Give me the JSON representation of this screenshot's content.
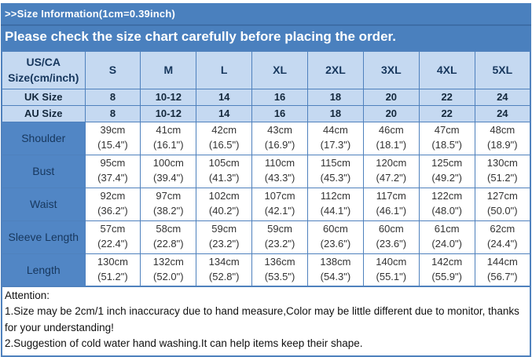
{
  "banner": {
    "title": ">>Size Information(1cm=0.39inch)",
    "subtitle": "Please check the size chart carefully before placing the order."
  },
  "table": {
    "corner_line1": "US/CA",
    "corner_line2": "Size(cm/inch)",
    "sizes": [
      "S",
      "M",
      "L",
      "XL",
      "2XL",
      "3XL",
      "4XL",
      "5XL"
    ],
    "size_rows": [
      {
        "label": "UK Size",
        "values": [
          "8",
          "10-12",
          "14",
          "16",
          "18",
          "20",
          "22",
          "24"
        ]
      },
      {
        "label": "AU Size",
        "values": [
          "8",
          "10-12",
          "14",
          "16",
          "18",
          "20",
          "22",
          "24"
        ]
      }
    ],
    "measurement_rows": [
      {
        "label": "Shoulder",
        "values": [
          {
            "cm": "39cm",
            "inch": "(15.4\")"
          },
          {
            "cm": "41cm",
            "inch": "(16.1\")"
          },
          {
            "cm": "42cm",
            "inch": "(16.5\")"
          },
          {
            "cm": "43cm",
            "inch": "(16.9\")"
          },
          {
            "cm": "44cm",
            "inch": "(17.3\")"
          },
          {
            "cm": "46cm",
            "inch": "(18.1\")"
          },
          {
            "cm": "47cm",
            "inch": "(18.5\")"
          },
          {
            "cm": "48cm",
            "inch": "(18.9\")"
          }
        ]
      },
      {
        "label": "Bust",
        "values": [
          {
            "cm": "95cm",
            "inch": "(37.4\")"
          },
          {
            "cm": "100cm",
            "inch": "(39.4\")"
          },
          {
            "cm": "105cm",
            "inch": "(41.3\")"
          },
          {
            "cm": "110cm",
            "inch": "(43.3\")"
          },
          {
            "cm": "115cm",
            "inch": "(45.3\")"
          },
          {
            "cm": "120cm",
            "inch": "(47.2\")"
          },
          {
            "cm": "125cm",
            "inch": "(49.2\")"
          },
          {
            "cm": "130cm",
            "inch": "(51.2\")"
          }
        ]
      },
      {
        "label": "Waist",
        "values": [
          {
            "cm": "92cm",
            "inch": "(36.2\")"
          },
          {
            "cm": "97cm",
            "inch": "(38.2\")"
          },
          {
            "cm": "102cm",
            "inch": "(40.2\")"
          },
          {
            "cm": "107cm",
            "inch": "(42.1\")"
          },
          {
            "cm": "112cm",
            "inch": "(44.1\")"
          },
          {
            "cm": "117cm",
            "inch": "(46.1\")"
          },
          {
            "cm": "122cm",
            "inch": "(48.0\")"
          },
          {
            "cm": "127cm",
            "inch": "(50.0\")"
          }
        ]
      },
      {
        "label": "Sleeve Length",
        "values": [
          {
            "cm": "57cm",
            "inch": "(22.4\")"
          },
          {
            "cm": "58cm",
            "inch": "(22.8\")"
          },
          {
            "cm": "59cm",
            "inch": "(23.2\")"
          },
          {
            "cm": "59cm",
            "inch": "(23.2\")"
          },
          {
            "cm": "60cm",
            "inch": "(23.6\")"
          },
          {
            "cm": "60cm",
            "inch": "(23.6\")"
          },
          {
            "cm": "61cm",
            "inch": "(24.0\")"
          },
          {
            "cm": "62cm",
            "inch": "(24.4\")"
          }
        ]
      },
      {
        "label": "Length",
        "values": [
          {
            "cm": "130cm",
            "inch": "(51.2\")"
          },
          {
            "cm": "132cm",
            "inch": "(52.0\")"
          },
          {
            "cm": "134cm",
            "inch": "(52.8\")"
          },
          {
            "cm": "136cm",
            "inch": "(53.5\")"
          },
          {
            "cm": "138cm",
            "inch": "(54.3\")"
          },
          {
            "cm": "140cm",
            "inch": "(55.1\")"
          },
          {
            "cm": "142cm",
            "inch": "(55.9\")"
          },
          {
            "cm": "144cm",
            "inch": "(56.7\")"
          }
        ]
      }
    ]
  },
  "attention": {
    "title": "Attention:",
    "line1": "1.Size may be 2cm/1 inch inaccuracy due to hand measure,Color may be little different due to monitor, thanks for your understanding!",
    "line2": "2.Suggestion of cold water hand washing.It can help items keep their shape."
  },
  "colors": {
    "band_blue": "#4a80be",
    "label_blue": "#5186c5",
    "light_blue": "#c5d9f1",
    "border_blue": "#4f81bd",
    "navy_text": "#17375d"
  }
}
